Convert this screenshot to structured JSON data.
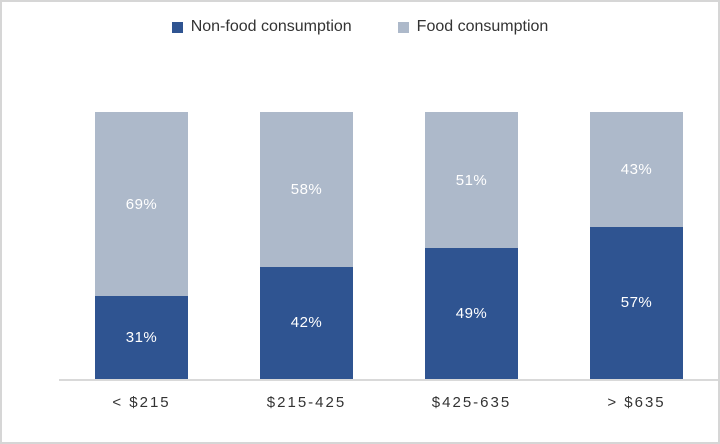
{
  "chart_data": {
    "type": "bar",
    "stacked": true,
    "orientation": "vertical",
    "categories": [
      "< $215",
      "$215-425",
      "$425-635",
      "> $635"
    ],
    "series": [
      {
        "name": "Non-food consumption",
        "color": "#2F5491",
        "values": [
          31,
          42,
          49,
          57
        ]
      },
      {
        "name": "Food consumption",
        "color": "#ADB9CA",
        "values": [
          69,
          58,
          51,
          43
        ]
      }
    ],
    "value_suffix": "%",
    "ylim": [
      0,
      100
    ],
    "title": "",
    "xlabel": "",
    "ylabel": "",
    "grid": false,
    "legend_position": "top",
    "data_labels": "inside-center"
  },
  "colors": {
    "nonfood_series": "#2F5491",
    "food_series": "#ADB9CA",
    "frame_border": "#D6D6D6",
    "axis_line": "#D9D9D9",
    "axis_text": "#333333",
    "data_label_text": "#FFFFFF"
  }
}
